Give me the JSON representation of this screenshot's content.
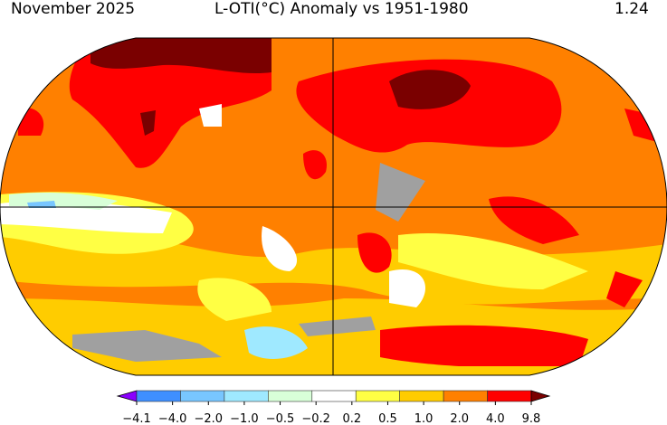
{
  "header": {
    "date": "November 2025",
    "title": "L-OTI(°C) Anomaly vs 1951-1980",
    "global_mean": "1.24"
  },
  "colorbar": {
    "ticks": [
      "−4.1",
      "−4.0",
      "−2.0",
      "−1.0",
      "−0.5",
      "−0.2",
      "0.2",
      "0.5",
      "1.0",
      "2.0",
      "4.0",
      "9.8"
    ],
    "colors": [
      "#8a00ff",
      "#3f8fff",
      "#78c6ff",
      "#9fe9ff",
      "#d8ffd8",
      "#ffffff",
      "#ffff44",
      "#ffcc00",
      "#ff8000",
      "#ff0000",
      "#7a0000"
    ]
  },
  "map": {
    "missing_data_color": "#a0a0a0",
    "projection": "Robinson"
  }
}
